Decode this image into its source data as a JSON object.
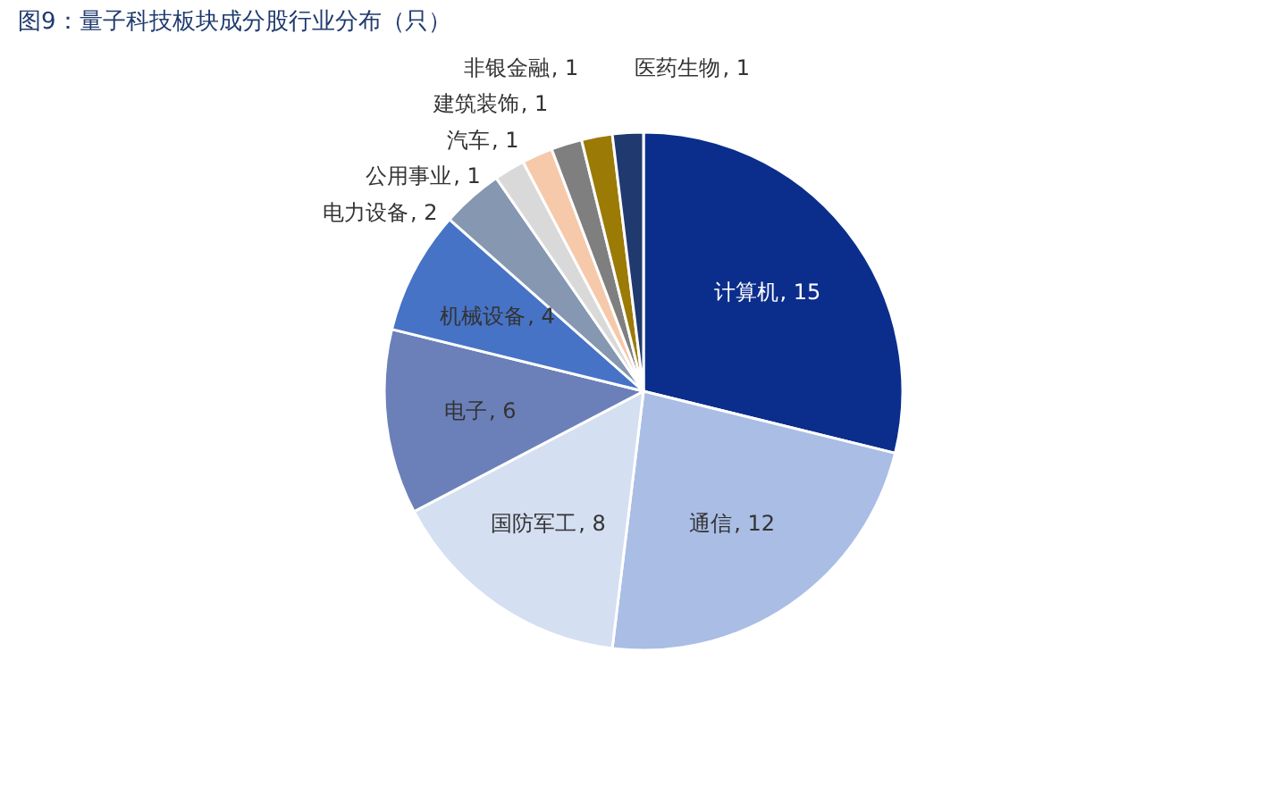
{
  "chart_data": {
    "type": "pie",
    "title": "图9：量子科技板块成分股行业分布（只）",
    "categories": [
      "计算机",
      "通信",
      "国防军工",
      "电子",
      "机械设备",
      "电力设备",
      "公用事业",
      "汽车",
      "建筑装饰",
      "非银金融",
      "医药生物"
    ],
    "values": [
      15,
      12,
      8,
      6,
      4,
      2,
      1,
      1,
      1,
      1,
      1
    ],
    "value_labels": [
      ", 15",
      ", 12",
      ", 8",
      ", 6",
      ", 4",
      ", 2",
      ", 1",
      ", 1",
      ", 1",
      ", 1",
      ", 1"
    ],
    "colors": [
      "#0b2e8c",
      "#a9bde5",
      "#d5dff2",
      "#6b80b9",
      "#4673c6",
      "#8597b1",
      "#d9d9d9",
      "#f6c9ab",
      "#7f7f7f",
      "#9b7a06",
      "#203a70"
    ],
    "legend": false
  }
}
